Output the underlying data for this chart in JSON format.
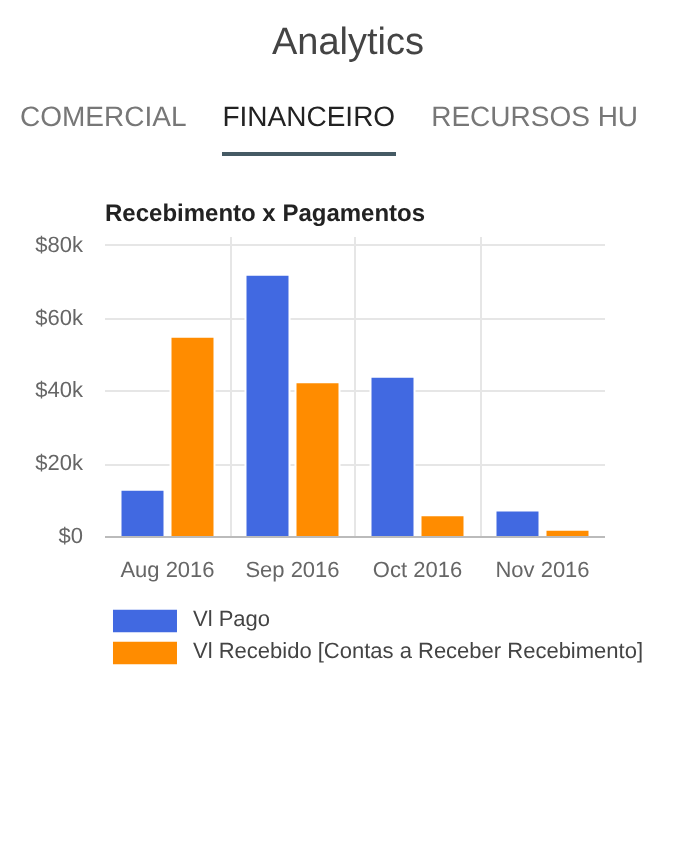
{
  "chart_data": {
    "type": "bar",
    "title": "Recebimento x Pagamentos",
    "annotations": [
      "Analytics",
      "COMERCIAL",
      "FINANCEIRO",
      "RECURSOS HU"
    ],
    "categories": [
      "Aug 2016",
      "Sep 2016",
      "Oct 2016",
      "Nov 2016"
    ],
    "series": [
      {
        "name": "Vl Pago",
        "color": "#4169e1",
        "values": [
          13000,
          72000,
          44000,
          7300
        ]
      },
      {
        "name": "Vl Recebido [Contas a Receber Recebimento]",
        "color": "#ff8c00",
        "values": [
          55000,
          42500,
          6000,
          2000
        ]
      }
    ],
    "ylim": [
      0,
      80000
    ],
    "yticks": [
      {
        "value": 0,
        "label": "$0"
      },
      {
        "value": 20000,
        "label": "$20k"
      },
      {
        "value": 40000,
        "label": "$40k"
      },
      {
        "value": 60000,
        "label": "$60k"
      },
      {
        "value": 80000,
        "label": "$80k"
      }
    ],
    "grid": true,
    "legend": "bottom"
  }
}
